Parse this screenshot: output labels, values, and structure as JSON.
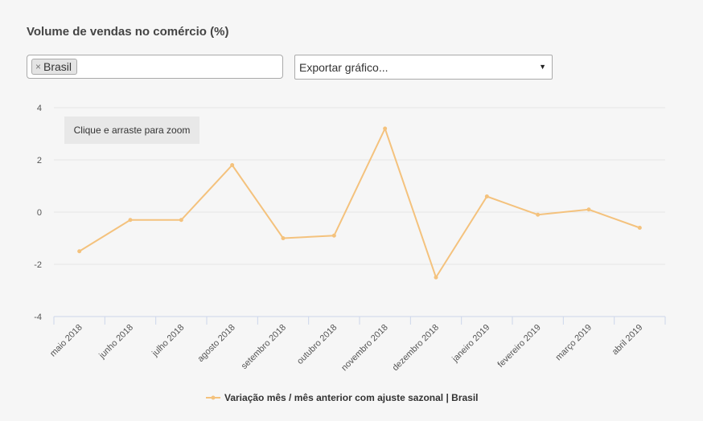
{
  "header": {
    "title": "Volume de vendas no comércio (%)"
  },
  "filter": {
    "tag_label": "Brasil",
    "tag_remove": "×"
  },
  "export": {
    "placeholder": "Exportar gráfico...",
    "caret": "▼"
  },
  "zoom_hint": "Clique e arraste para zoom",
  "colors": {
    "series": "#f4c27d",
    "grid": "#e6e6e6",
    "axis": "#ccd6eb"
  },
  "chart_data": {
    "type": "line",
    "title": "Volume de vendas no comércio (%)",
    "categories": [
      "maio 2018",
      "junho 2018",
      "julho 2018",
      "agosto 2018",
      "setembro 2018",
      "outubro 2018",
      "novembro 2018",
      "dezembro 2018",
      "janeiro 2019",
      "fevereiro 2019",
      "março 2019",
      "abril 2019"
    ],
    "series": [
      {
        "name": "Variação mês / mês anterior com ajuste sazonal | Brasil",
        "values": [
          -1.5,
          -0.3,
          -0.3,
          1.8,
          -1.0,
          -0.9,
          3.2,
          -2.5,
          0.6,
          -0.1,
          0.1,
          -0.6
        ]
      }
    ],
    "yticks": [
      4,
      2,
      0,
      -2,
      -4
    ],
    "ylim": [
      -4,
      4
    ],
    "grid": true,
    "legend": "bottom-center"
  }
}
